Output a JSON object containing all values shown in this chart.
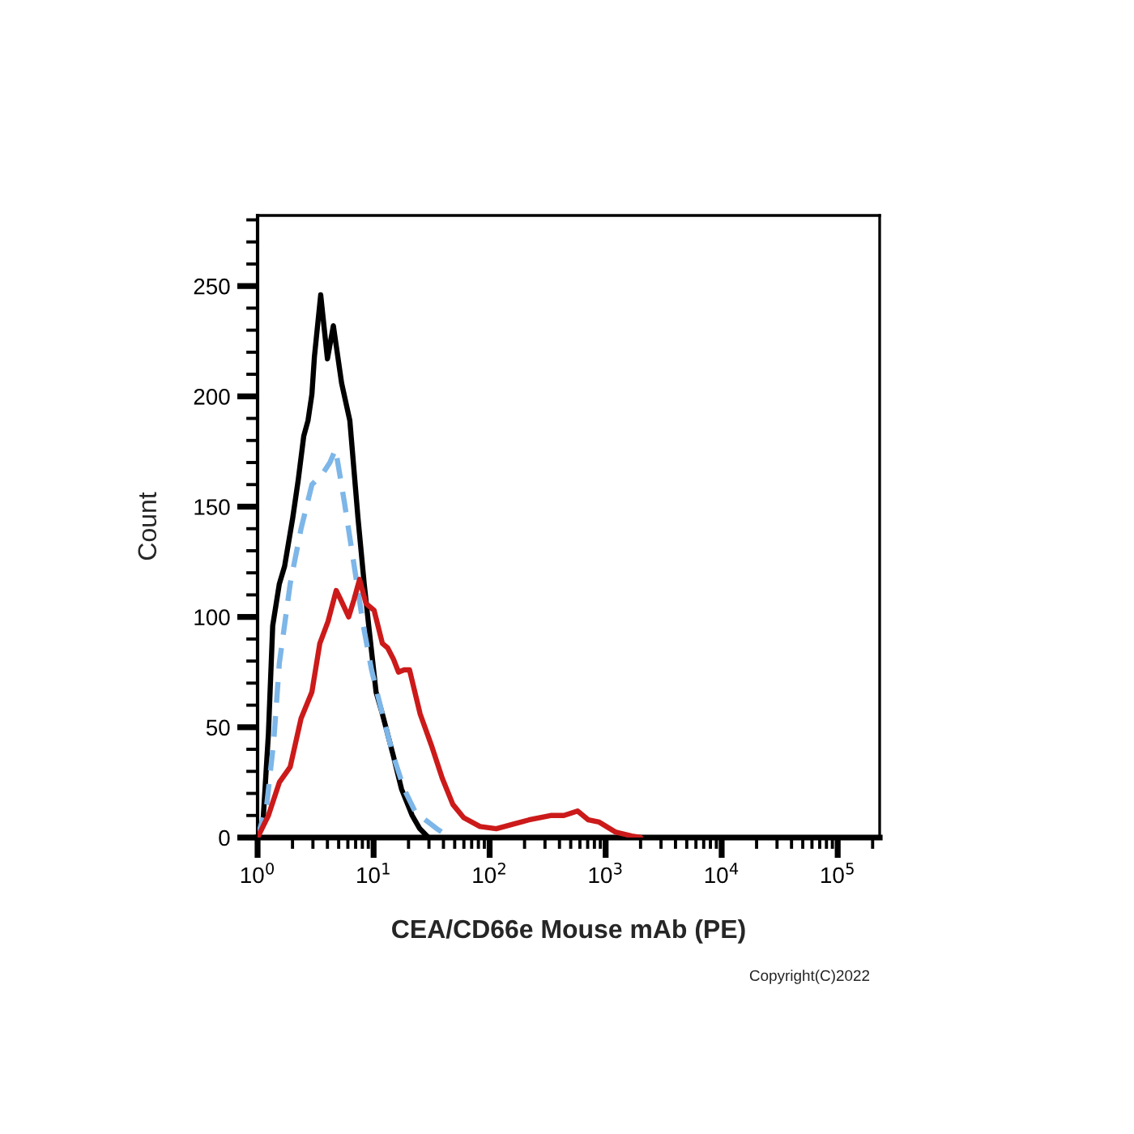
{
  "chart_data": {
    "type": "line",
    "xlabel": "CEA/CD66e Mouse mAb (PE)",
    "ylabel": "Count",
    "annotations": [
      "Copyright(C)2022"
    ],
    "log": "x",
    "xlim": [
      1,
      230000
    ],
    "xticks": [
      {
        "value": 1,
        "label": "10$^{0}$"
      },
      {
        "value": 10,
        "label": "10$^{1}$"
      },
      {
        "value": 100,
        "label": "10$^{2}$"
      },
      {
        "value": 1000,
        "label": "10$^{3}$"
      },
      {
        "value": 10000,
        "label": "10$^{4}$"
      },
      {
        "value": 100000,
        "label": "10$^{5}$"
      }
    ],
    "ylim": [
      0,
      282
    ],
    "yticks": [
      0,
      50,
      100,
      150,
      200,
      250
    ],
    "series": [
      {
        "color": "#000000",
        "line_style": "solid",
        "x": [
          1,
          1.11,
          1.24,
          1.35,
          1.54,
          1.71,
          2.01,
          2.24,
          2.5,
          2.72,
          2.94,
          3.09,
          3.5,
          4.0,
          4.5,
          5.3,
          6.24,
          7.33,
          8.3,
          9.08,
          10.5,
          11.9,
          14.8,
          17.4,
          21.5,
          25,
          29.7
        ],
        "values": [
          0,
          6,
          47,
          96,
          115,
          123,
          145,
          162,
          182,
          189,
          201,
          218,
          246,
          217,
          232,
          206,
          189,
          145,
          115,
          96,
          66,
          56,
          37,
          22,
          10,
          4,
          0
        ]
      },
      {
        "color": "#7db6e8",
        "line_style": "dashed",
        "x": [
          1,
          1.2,
          1.38,
          1.54,
          1.91,
          2.37,
          2.94,
          3.64,
          4.2,
          4.7,
          5.6,
          6.95,
          8.16,
          9.6,
          11.9,
          14.8,
          18.3,
          22.7,
          25,
          35,
          45.7
        ],
        "values": [
          0,
          15,
          44,
          79,
          115,
          140,
          160,
          165,
          170,
          176,
          152,
          120,
          96,
          76,
          56,
          37,
          22,
          12,
          10,
          4,
          0
        ]
      },
      {
        "color": "#cc1a1a",
        "line_style": "solid",
        "x": [
          1,
          1.24,
          1.54,
          1.91,
          2.37,
          2.94,
          3.44,
          4.05,
          4.76,
          5.19,
          6.1,
          6.79,
          7.57,
          8.62,
          10.1,
          11.9,
          13.2,
          14.8,
          16.4,
          18.3,
          20.4,
          25.2,
          31.4,
          39,
          48.2,
          59.8,
          82.6,
          114,
          158,
          218,
          335,
          437,
          573,
          710,
          880,
          1216,
          1680,
          2000
        ],
        "values": [
          0,
          10,
          25,
          32,
          54,
          66,
          88,
          98,
          112,
          108,
          100,
          108,
          117,
          106,
          103,
          88,
          86,
          81,
          75,
          76,
          76,
          56,
          42,
          27,
          15,
          9,
          5,
          4,
          6,
          8,
          10,
          10,
          12,
          8,
          7,
          2.5,
          0.7,
          0
        ]
      }
    ]
  }
}
